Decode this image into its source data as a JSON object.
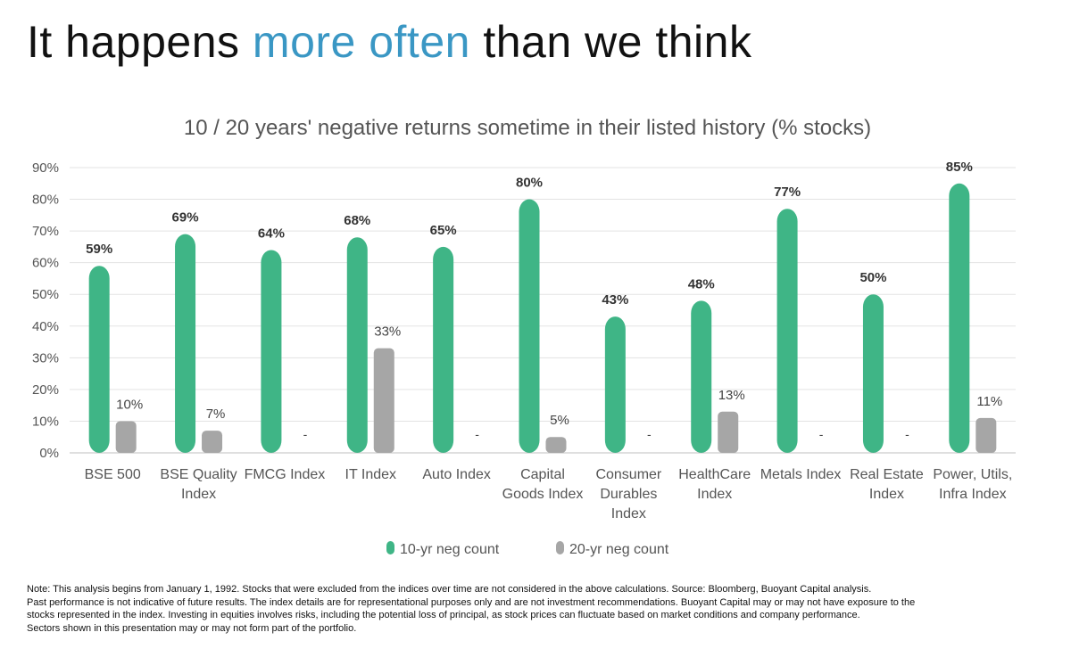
{
  "headline": {
    "prefix": "It happens ",
    "accent": "more often",
    "suffix": " than we think",
    "accent_color": "#3a97c4"
  },
  "chart_data": {
    "type": "bar",
    "title": "10 / 20 years' negative returns sometime in their listed history (% stocks)",
    "categories": [
      [
        "BSE 500"
      ],
      [
        "BSE Quality",
        "Index"
      ],
      [
        "FMCG Index"
      ],
      [
        "IT Index"
      ],
      [
        "Auto Index"
      ],
      [
        "Capital",
        "Goods Index"
      ],
      [
        "Consumer",
        "Durables",
        "Index"
      ],
      [
        "HealthCare",
        "Index"
      ],
      [
        "Metals Index"
      ],
      [
        "Real Estate",
        "Index"
      ],
      [
        "Power, Utils,",
        "Infra Index"
      ]
    ],
    "series": [
      {
        "name": "10-yr neg count",
        "color": "#3fb586",
        "values": [
          59,
          69,
          64,
          68,
          65,
          80,
          43,
          48,
          77,
          50,
          85
        ],
        "labels": [
          "59%",
          "69%",
          "64%",
          "68%",
          "65%",
          "80%",
          "43%",
          "48%",
          "77%",
          "50%",
          "85%"
        ]
      },
      {
        "name": "20-yr neg count",
        "color": "#a6a6a6",
        "values": [
          10,
          7,
          null,
          33,
          null,
          5,
          null,
          13,
          null,
          null,
          11
        ],
        "labels": [
          "10%",
          "7%",
          "-",
          "33%",
          "-",
          "5%",
          "-",
          "13%",
          "-",
          "-",
          "11%"
        ]
      }
    ],
    "ylim": [
      0,
      90
    ],
    "yticks": [
      "0%",
      "10%",
      "20%",
      "30%",
      "40%",
      "50%",
      "60%",
      "70%",
      "80%",
      "90%"
    ],
    "grid": true,
    "legend_position": "bottom"
  },
  "notes": [
    "Note: This analysis begins from January 1, 1992. Stocks that were excluded from the indices over time are not considered in the above calculations. Source: Bloomberg, Buoyant Capital analysis.",
    "Past performance is not indicative of future results. The index details are for representational purposes only and are not investment recommendations. Buoyant Capital may or may not have exposure to the",
    "stocks represented in the index. Investing in equities involves risks, including the potential loss of principal, as stock prices can fluctuate based on market conditions and company performance.",
    "Sectors shown in this presentation may or may not form part of the portfolio."
  ]
}
